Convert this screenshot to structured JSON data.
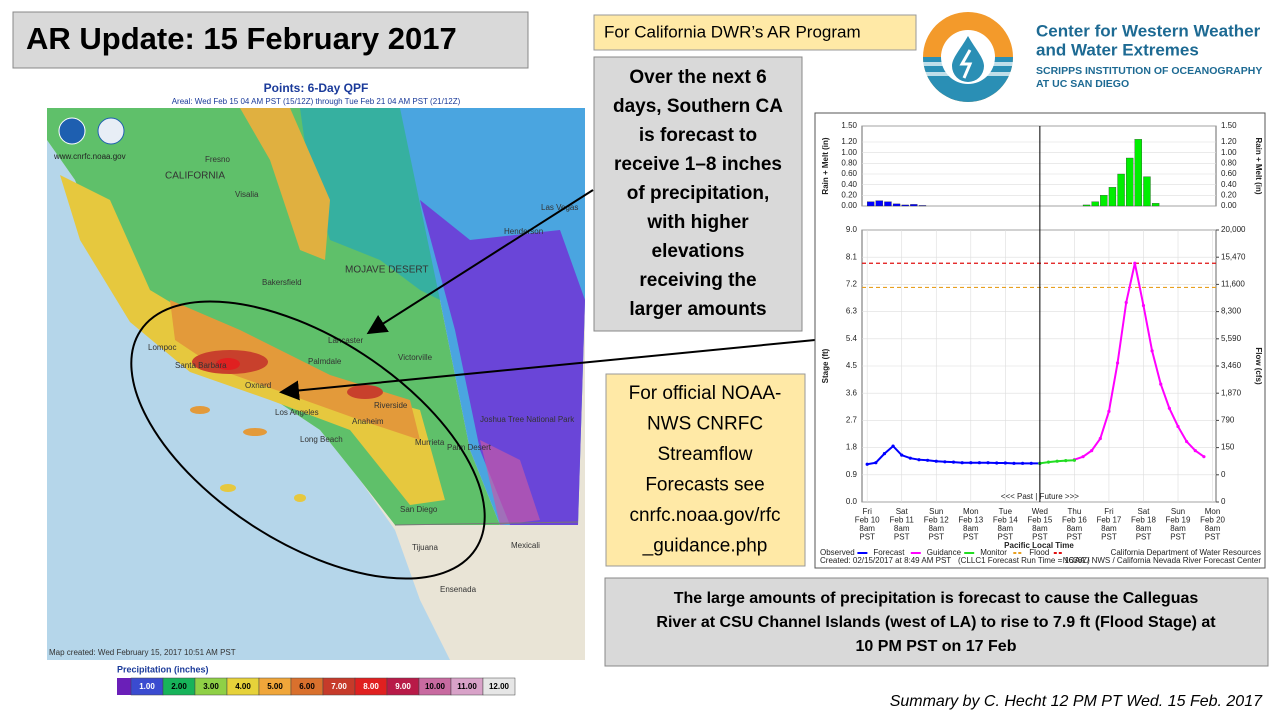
{
  "title": "AR Update: 15 February 2017",
  "program_note": "For California DWR’s AR Program",
  "logo": {
    "lines": [
      "Center for Western Weather",
      "and Water Extremes"
    ],
    "sublines": [
      "SCRIPPS INSTITUTION OF OCEANOGRAPHY",
      "AT UC SAN DIEGO"
    ]
  },
  "callouts": {
    "precip": [
      "Over the next 6",
      "days, Southern CA",
      "is forecast to",
      "receive 1–8 inches",
      "of precipitation,",
      "with higher",
      "elevations",
      "receiving the",
      "larger amounts"
    ],
    "streamflow": [
      "For official NOAA-",
      "NWS CNRFC",
      "Streamflow",
      "Forecasts see",
      "cnrfc.noaa.gov/rfc",
      "_guidance.php"
    ],
    "flood": [
      "The large amounts of precipitation is forecast to cause the Calleguas",
      "River at CSU Channel Islands (west of LA) to rise to 7.9 ft (Flood Stage) at",
      "10 PM PST on 17 Feb"
    ]
  },
  "summary": "Summary by C. Hecht 12 PM PT Wed. 15 Feb. 2017",
  "map": {
    "title": "Points: 6-Day QPF",
    "subtitle": "Areal: Wed Feb 15 04 AM PST (15/12Z) through Tue Feb 21 04 AM PST (21/12Z)",
    "url": "www.cnrfc.noaa.gov",
    "created": "Map created: Wed February 15, 2017 10:51 AM PST",
    "legend_title": "Precipitation (inches)",
    "legend_labels": [
      "1.00",
      "2.00",
      "3.00",
      "4.00",
      "5.00",
      "6.00",
      "7.00",
      "8.00",
      "9.00",
      "10.00",
      "11.00",
      "12.00"
    ],
    "legend_colors": [
      "#3a4bd0",
      "#17b35a",
      "#8fd046",
      "#e6d23a",
      "#f0a63a",
      "#d9702d",
      "#c63a2a",
      "#e02020",
      "#b81a48",
      "#c86aa0",
      "#d8a2c8",
      "#e6e6e6"
    ],
    "places": [
      "Fresno",
      "CALIFORNIA",
      "Visalia",
      "Bakersfield",
      "MOJAVE DESERT",
      "Las Vegas",
      "Henderson",
      "Lancaster",
      "Palmdale",
      "Victorville",
      "Lompoc",
      "Santa Barbara",
      "Oxnard",
      "Los Angeles",
      "Long Beach",
      "Riverside",
      "Anaheim",
      "Murrieta",
      "Palm Desert",
      "Joshua Tree National Park",
      "San Diego",
      "Tijuana",
      "Mexicali",
      "Ensenada"
    ]
  },
  "chart_data": [
    {
      "type": "bar",
      "ylabel": "Rain + Melt (in)",
      "y2label": "Rain + Melt (in)",
      "xlim": [
        -0.15,
        10.1
      ],
      "ylim": [
        0,
        1.5
      ],
      "yticks": [
        {
          "value": 0,
          "label": "0.00"
        },
        {
          "value": 0.2,
          "label": "0.20"
        },
        {
          "value": 0.4,
          "label": "0.40"
        },
        {
          "value": 0.6,
          "label": "0.60"
        },
        {
          "value": 0.8,
          "label": "0.80"
        },
        {
          "value": 1,
          "label": "1.00"
        },
        {
          "value": 1.2,
          "label": "1.20"
        },
        {
          "value": 1.5,
          "label": "1.50"
        }
      ],
      "series": [
        {
          "color": "#0000ff",
          "x": [
            0,
            0.25,
            0.5,
            0.75,
            1,
            1.25,
            1.5
          ],
          "values": [
            0.08,
            0.1,
            0.08,
            0.04,
            0.02,
            0.03,
            0.01
          ]
        },
        {
          "color": "#00ee00",
          "x": [
            6.25,
            6.5,
            6.75,
            7,
            7.25,
            7.5,
            7.75,
            8,
            8.25
          ],
          "values": [
            0.02,
            0.08,
            0.2,
            0.35,
            0.6,
            0.9,
            1.25,
            0.55,
            0.05
          ]
        }
      ]
    },
    {
      "type": "line",
      "ylabel": "Stage (ft)",
      "y2label": "Flow (cfs)",
      "xlabel": "Pacific Local Time",
      "xlim": [
        -0.15,
        10.1
      ],
      "ylim": [
        0,
        9
      ],
      "xticks": [
        {
          "value": 0,
          "label": [
            "Fri",
            "Feb 10",
            "8am",
            "PST"
          ]
        },
        {
          "value": 1,
          "label": [
            "Sat",
            "Feb 11",
            "8am",
            "PST"
          ]
        },
        {
          "value": 2,
          "label": [
            "Sun",
            "Feb 12",
            "8am",
            "PST"
          ]
        },
        {
          "value": 3,
          "label": [
            "Mon",
            "Feb 13",
            "8am",
            "PST"
          ]
        },
        {
          "value": 4,
          "label": [
            "Tue",
            "Feb 14",
            "8am",
            "PST"
          ]
        },
        {
          "value": 5,
          "label": [
            "Wed",
            "Feb 15",
            "8am",
            "PST"
          ]
        },
        {
          "value": 6,
          "label": [
            "Thu",
            "Feb 16",
            "8am",
            "PST"
          ]
        },
        {
          "value": 7,
          "label": [
            "Fri",
            "Feb 17",
            "8am",
            "PST"
          ]
        },
        {
          "value": 8,
          "label": [
            "Sat",
            "Feb 18",
            "8am",
            "PST"
          ]
        },
        {
          "value": 9,
          "label": [
            "Sun",
            "Feb 19",
            "8am",
            "PST"
          ]
        },
        {
          "value": 10,
          "label": [
            "Mon",
            "Feb 20",
            "8am",
            "PST"
          ]
        }
      ],
      "yticks": [
        {
          "value": 0,
          "label": "0.0"
        },
        0.9,
        1.8,
        2.7,
        3.6,
        4.5,
        5.4,
        6.3,
        7.2,
        8.1,
        {
          "value": 9,
          "label": "9.0"
        }
      ],
      "y2ticks": [
        0,
        0,
        150,
        790,
        {
          "value": 1870,
          "label": "1,870"
        },
        {
          "value": 3460,
          "label": "3,460"
        },
        {
          "value": 5590,
          "label": "5,590"
        },
        {
          "value": 8300,
          "label": "8,300"
        },
        {
          "value": 11600,
          "label": "11,600"
        },
        {
          "value": 15470,
          "label": "15,470"
        },
        {
          "value": 20000,
          "label": "20,000"
        }
      ],
      "series": [
        {
          "name": "Observed",
          "color": "#0000ff",
          "x": [
            0,
            0.25,
            0.5,
            0.75,
            1,
            1.25,
            1.5,
            1.75,
            2,
            2.25,
            2.5,
            2.75,
            3,
            3.25,
            3.5,
            3.75,
            4,
            4.25,
            4.5,
            4.75,
            5
          ],
          "values": [
            1.25,
            1.3,
            1.6,
            1.85,
            1.55,
            1.45,
            1.4,
            1.38,
            1.35,
            1.33,
            1.32,
            1.3,
            1.3,
            1.3,
            1.3,
            1.29,
            1.29,
            1.28,
            1.28,
            1.28,
            1.28
          ]
        },
        {
          "name": "Forecast",
          "color": "#ff00ff",
          "x": [
            6,
            6.25,
            6.5,
            6.75,
            7,
            7.25,
            7.5,
            7.75,
            8,
            8.25,
            8.5,
            8.75,
            9,
            9.25,
            9.5,
            9.75
          ],
          "values": [
            1.4,
            1.5,
            1.7,
            2.1,
            3.0,
            4.6,
            6.6,
            7.9,
            6.5,
            5.0,
            3.9,
            3.1,
            2.5,
            2.0,
            1.7,
            1.5
          ]
        },
        {
          "name": "Guidance",
          "color": "#22dd22",
          "x": [
            5,
            5.25,
            5.5,
            5.75,
            6
          ],
          "values": [
            1.28,
            1.32,
            1.35,
            1.37,
            1.38
          ]
        }
      ],
      "thresholds": [
        {
          "name": "Monitor",
          "color": "#e8a020",
          "value": 7.1
        },
        {
          "name": "Flood",
          "color": "#e01010",
          "value": 7.9
        }
      ],
      "now": 5,
      "past_future": "<<< Past | Future >>>",
      "footer": {
        "created": "Created: 02/15/2017 at 8:49 AM PST",
        "run": "(CLLC1 Forecast Run Time = 1638Z)",
        "agency": "California Department of Water Resources",
        "center": "NOAA / NWS / California Nevada River Forecast Center"
      }
    }
  ]
}
